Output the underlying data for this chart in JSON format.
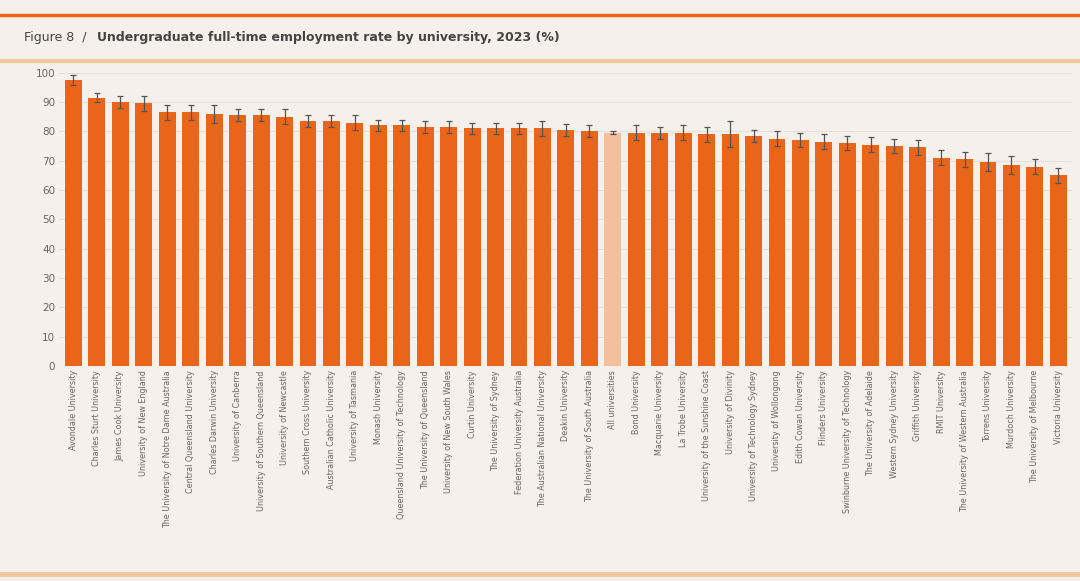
{
  "title_regular": "Figure 8  /  ",
  "title_bold": "Undergraduate full-time employment rate by university, 2023 (%)",
  "universities": [
    "Avondale University",
    "Charles Sturt University",
    "James Cook University",
    "University of New England",
    "The University of Notre Dame Australia",
    "Central Queensland University",
    "Charles Darwin University",
    "University of Canberra",
    "University of Southern Queensland",
    "University of Newcastle",
    "Southern Cross University",
    "Australian Catholic University",
    "University of Tasmania",
    "Monash University",
    "Queensland University of Technology",
    "The University of Queensland",
    "University of New South Wales",
    "Curtin University",
    "The University of Sydney",
    "Federation University Australia",
    "The Australian National University",
    "Deakin University",
    "The University of South Australia",
    "All universities",
    "Bond University",
    "Macquarie University",
    "La Trobe University",
    "University of the Sunshine Coast",
    "University of Divinity",
    "University of Technology Sydney",
    "University of Wollongong",
    "Edith Cowan University",
    "Flinders University",
    "Swinburne University of Technology",
    "The University of Adelaide",
    "Western Sydney University",
    "Griffith University",
    "RMIT University",
    "The University of Western Australia",
    "Torrens University",
    "Murdoch University",
    "The University of Melbourne",
    "Victoria University"
  ],
  "values": [
    97.5,
    91.5,
    90.0,
    89.5,
    86.5,
    86.5,
    86.0,
    85.5,
    85.5,
    85.0,
    83.5,
    83.5,
    83.0,
    82.0,
    82.0,
    81.5,
    81.5,
    81.0,
    81.0,
    81.0,
    81.0,
    80.5,
    80.0,
    79.5,
    79.5,
    79.5,
    79.5,
    79.0,
    79.0,
    78.5,
    77.5,
    77.0,
    76.5,
    76.0,
    75.5,
    75.0,
    74.5,
    71.0,
    70.5,
    69.5,
    68.5,
    68.0,
    65.0
  ],
  "errors": [
    1.8,
    1.5,
    2.0,
    2.5,
    2.5,
    2.5,
    3.0,
    2.0,
    2.0,
    2.5,
    2.0,
    2.0,
    2.5,
    2.0,
    2.0,
    2.0,
    2.0,
    2.0,
    2.0,
    2.0,
    2.5,
    2.0,
    2.0,
    0.5,
    2.5,
    2.0,
    2.5,
    2.5,
    4.5,
    2.0,
    2.5,
    2.5,
    2.5,
    2.5,
    2.5,
    2.5,
    2.5,
    2.5,
    2.5,
    3.0,
    3.0,
    2.5,
    2.5
  ],
  "bar_color": "#E8651A",
  "highlight_color": "#F2C09A",
  "highlight_index": 23,
  "background_color": "#F5F0EB",
  "top_line_color": "#E8651A",
  "bottom_line_color": "#F0C8A0",
  "text_color": "#444444",
  "tick_color": "#666666",
  "grid_color": "#E0DADA",
  "ylim": [
    0,
    100
  ],
  "yticks": [
    0,
    10,
    20,
    30,
    40,
    50,
    60,
    70,
    80,
    90,
    100
  ]
}
